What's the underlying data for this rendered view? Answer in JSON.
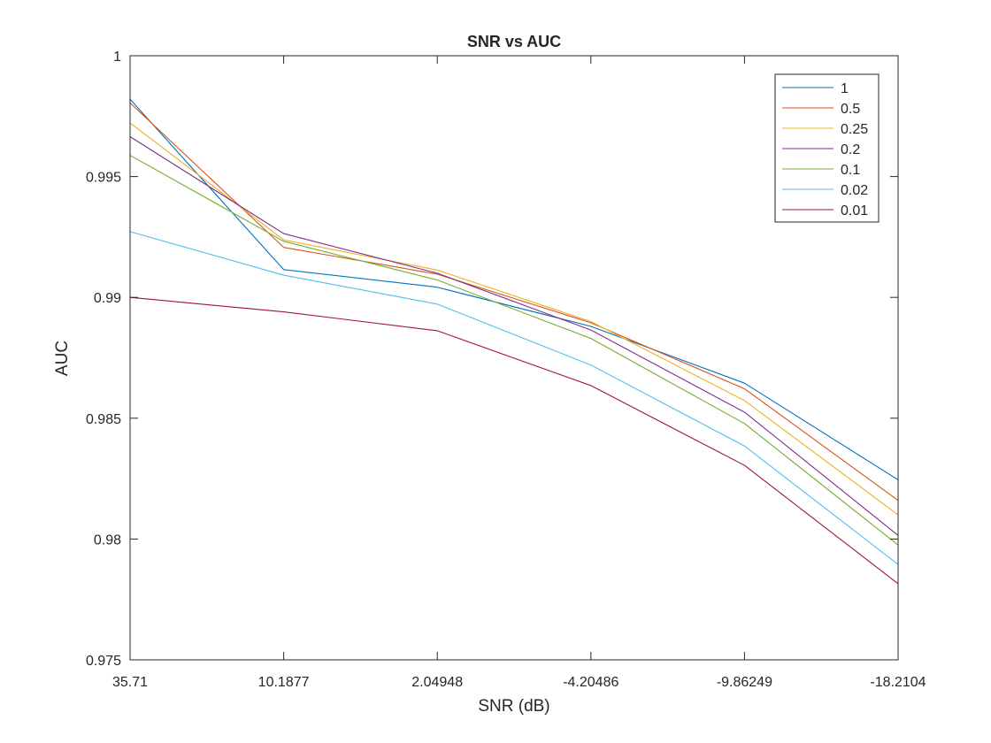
{
  "chart_data": {
    "type": "line",
    "title": "SNR vs AUC",
    "xlabel": "SNR (dB)",
    "ylabel": "AUC",
    "x": [
      "35.71",
      "10.1877",
      "2.04948",
      "-4.20486",
      "-9.86249",
      "-18.2104"
    ],
    "ylim": [
      0.975,
      1
    ],
    "yticks": [
      "0.975",
      "0.98",
      "0.985",
      "0.99",
      "0.995",
      "1"
    ],
    "grid": false,
    "legend_position": "top-right",
    "series": [
      {
        "name": "1",
        "color": "#0072BD",
        "values": [
          0.9982,
          0.99115,
          0.99042,
          0.9888,
          0.98645,
          0.98245
        ]
      },
      {
        "name": "0.5",
        "color": "#D95319",
        "values": [
          0.99805,
          0.99207,
          0.99096,
          0.98895,
          0.98622,
          0.9816
        ]
      },
      {
        "name": "0.25",
        "color": "#EDB120",
        "values": [
          0.99722,
          0.99238,
          0.99113,
          0.989,
          0.98573,
          0.981
        ]
      },
      {
        "name": "0.2",
        "color": "#7E2F8E",
        "values": [
          0.99665,
          0.99264,
          0.991,
          0.98865,
          0.98525,
          0.98015
        ]
      },
      {
        "name": "0.1",
        "color": "#77AC30",
        "values": [
          0.99588,
          0.99232,
          0.99072,
          0.9883,
          0.98478,
          0.97975
        ]
      },
      {
        "name": "0.02",
        "color": "#4DBEEE",
        "values": [
          0.99272,
          0.99092,
          0.98972,
          0.9872,
          0.98385,
          0.97895
        ]
      },
      {
        "name": "0.01",
        "color": "#A2142F",
        "values": [
          0.99,
          0.9894,
          0.98862,
          0.98635,
          0.98305,
          0.97815
        ]
      }
    ]
  }
}
